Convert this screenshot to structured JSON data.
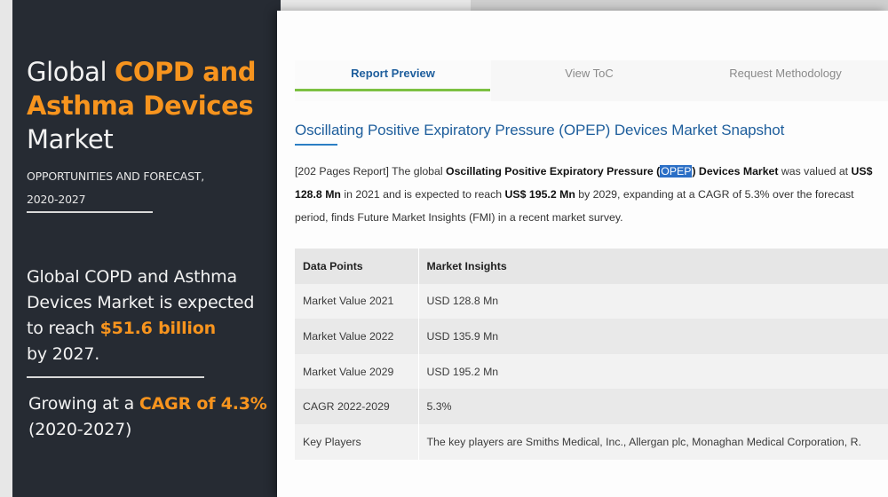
{
  "banner": {
    "title_line1_plain": "Global ",
    "title_line1_hl": "COPD and",
    "title_line2_hl": "Asthma Devices",
    "title_line3": "Market",
    "subtitle_line1": "OPPORTUNITIES AND FORECAST,",
    "subtitle_line2": "2020-2027",
    "statement_line1": "Global COPD and Asthma",
    "statement_line2": "Devices Market is expected",
    "statement_line3_plain": "to reach ",
    "statement_line3_hl": "$51.6 billion",
    "statement_line4": "by 2027.",
    "growth_plain": "Growing at a ",
    "growth_hl": "CAGR of 4.3%",
    "growth_years": "(2020-2027)"
  },
  "tabs": {
    "report_preview": "Report Preview",
    "view_toc": "View ToC",
    "request_methodology": "Request Methodology"
  },
  "snapshot": {
    "title": "Oscillating Positive Expiratory Pressure (OPEP) Devices Market Snapshot",
    "p_intro": "[202 Pages Report] The global ",
    "p_bold_product": "Oscillating Positive Expiratory Pressure (",
    "p_selected": "OPEP",
    "p_bold_market": ") Devices Market",
    "p_valued": " was valued at ",
    "p_value_2021": "US$ 128.8 Mn",
    "p_expected": " in 2021 and is expected to reach ",
    "p_value_2029": "US$ 195.2 Mn",
    "p_end": " by 2029, expanding at a CAGR of 5.3% over the forecast period, finds Future Market Insights (FMI) in a recent market survey."
  },
  "table": {
    "headers": [
      "Data Points",
      "Market Insights"
    ],
    "rows": [
      [
        "Market Value 2021",
        "USD 128.8 Mn"
      ],
      [
        "Market Value 2022",
        "USD 135.9 Mn"
      ],
      [
        "Market Value 2029",
        "USD 195.2 Mn"
      ],
      [
        "CAGR 2022-2029",
        "5.3%"
      ],
      [
        "Key Players",
        "The key players are Smiths Medical, Inc., Allergan plc, Monaghan Medical Corporation, R."
      ]
    ]
  },
  "colors": {
    "banner_bg": "#262b33",
    "banner_accent": "#f7941e",
    "link_blue": "#1e5e9c",
    "tab_indicator": "#7cc042",
    "selection": "#2b6fc6"
  }
}
